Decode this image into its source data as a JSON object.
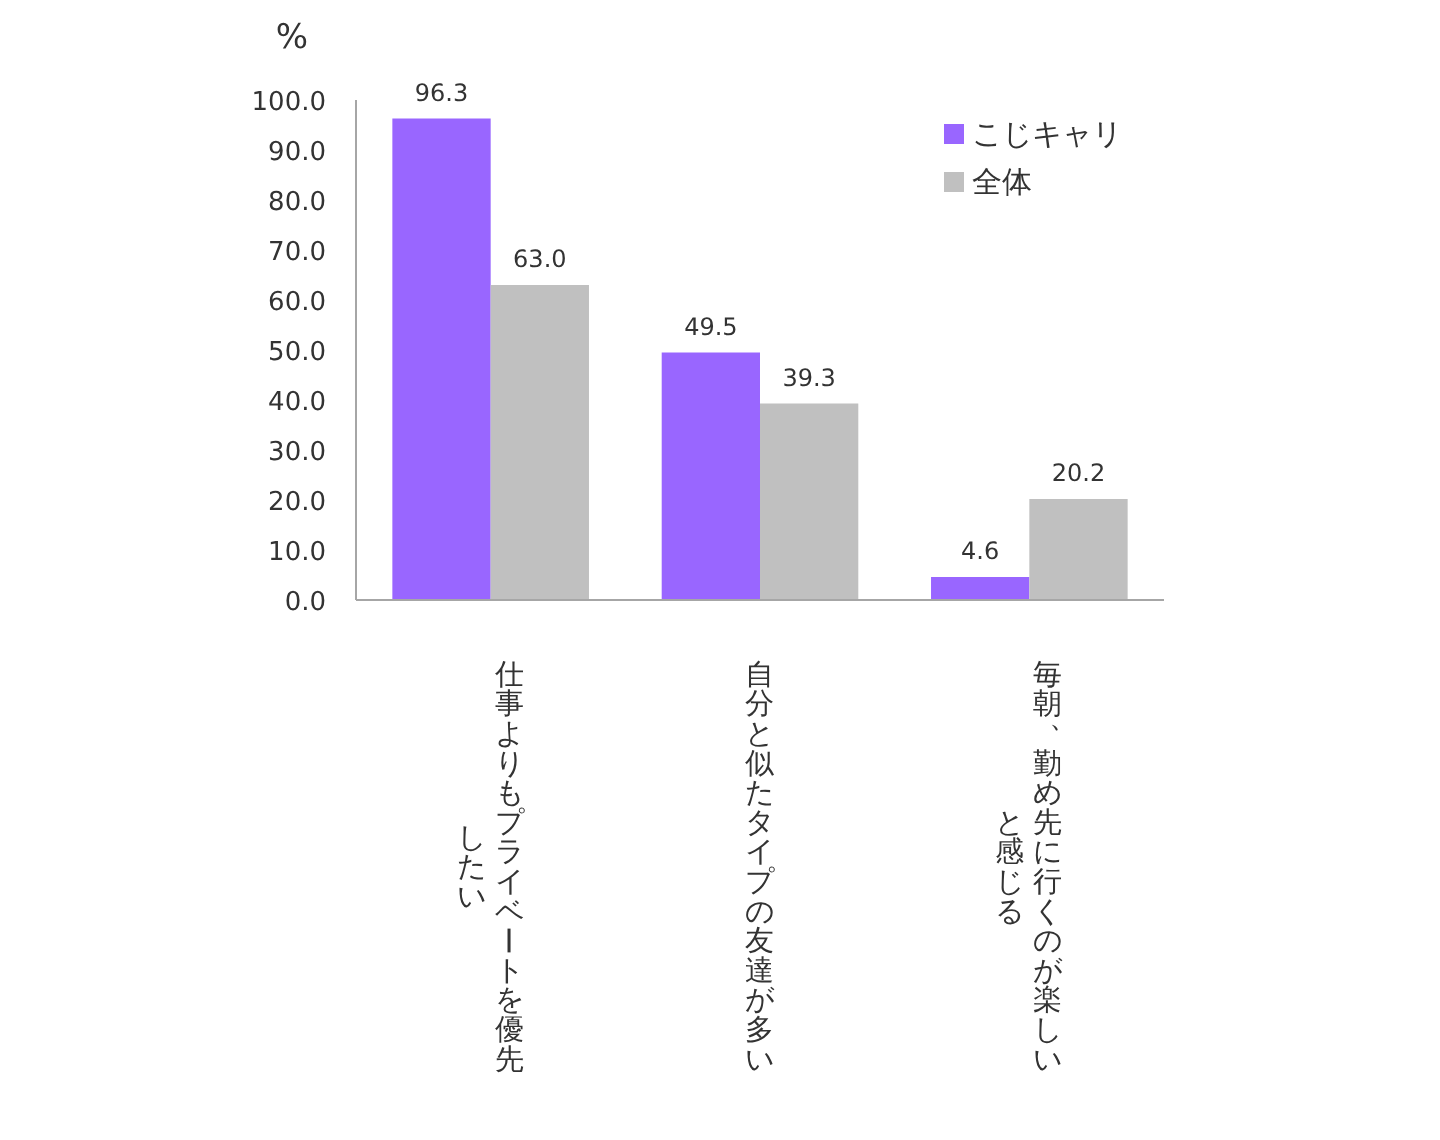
{
  "chart_data": {
    "type": "bar",
    "ylabel": "%",
    "categories": [
      "仕事よりもプライベートを優先したい",
      "自分と似たタイプの友達が多い",
      "毎朝、勤め先に行くのが楽しいと感じる"
    ],
    "series": [
      {
        "name": "こじキャリ",
        "color": "#9966ff",
        "values": [
          96.3,
          49.5,
          4.6
        ],
        "value_labels": [
          "96.3",
          "49.5",
          "4.6"
        ]
      },
      {
        "name": "全体",
        "color": "#c0c0c0",
        "values": [
          63.0,
          39.3,
          20.2
        ],
        "value_labels": [
          "63.0",
          "39.3",
          "20.2"
        ]
      }
    ],
    "ylim": [
      0,
      100
    ],
    "yticks": [
      {
        "value": 0,
        "label": "0.0"
      },
      {
        "value": 10,
        "label": "10.0"
      },
      {
        "value": 20,
        "label": "20.0"
      },
      {
        "value": 30,
        "label": "30.0"
      },
      {
        "value": 40,
        "label": "40.0"
      },
      {
        "value": 50,
        "label": "50.0"
      },
      {
        "value": 60,
        "label": "60.0"
      },
      {
        "value": 70,
        "label": "70.0"
      },
      {
        "value": 80,
        "label": "80.0"
      },
      {
        "value": 90,
        "label": "90.0"
      },
      {
        "value": 100,
        "label": "100.0"
      }
    ],
    "legend": "top right",
    "grid": false
  }
}
